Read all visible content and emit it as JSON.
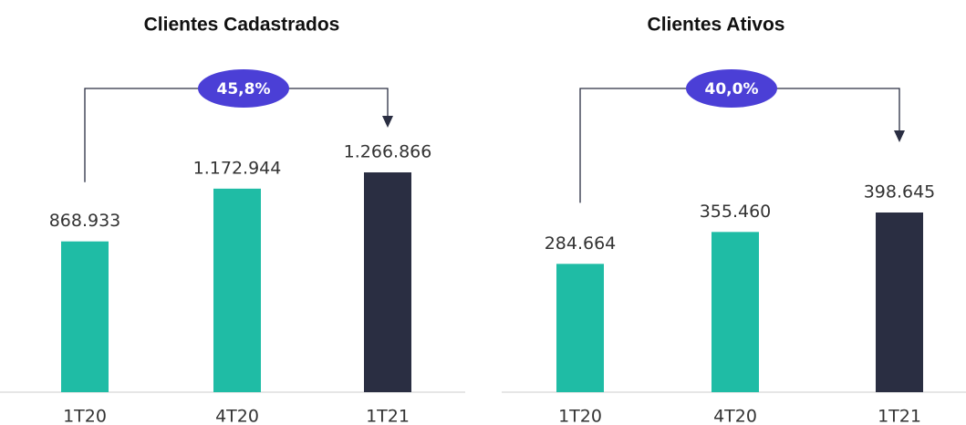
{
  "chart_data": [
    {
      "type": "bar",
      "title": "Clientes Cadastrados",
      "annotation": "45,8%",
      "categories": [
        "1T20",
        "4T20",
        "1T21"
      ],
      "values": [
        868933,
        1172944,
        1266866
      ],
      "value_labels": [
        "868.933",
        "1.172.944",
        "1.266.866"
      ],
      "colors": [
        "#1fbca5",
        "#1fbca5",
        "#2a2e42"
      ]
    },
    {
      "type": "bar",
      "title": "Clientes Ativos",
      "annotation": "40,0%",
      "categories": [
        "1T20",
        "4T20",
        "1T21"
      ],
      "values": [
        284664,
        355460,
        398645
      ],
      "value_labels": [
        "284.664",
        "355.460",
        "398.645"
      ],
      "colors": [
        "#1fbca5",
        "#1fbca5",
        "#2a2e42"
      ]
    }
  ]
}
